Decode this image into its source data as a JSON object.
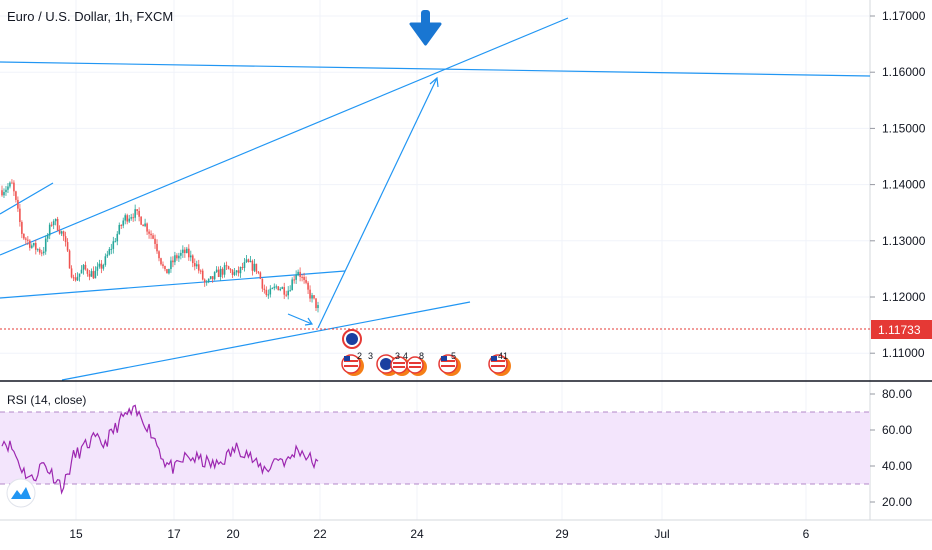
{
  "header": {
    "symbol_title": "Euro / U.S. Dollar, 1h, FXCM"
  },
  "price_scale": {
    "ticks": [
      "1.17000",
      "1.16000",
      "1.15000",
      "1.14000",
      "1.13000",
      "1.12000",
      "1.11000"
    ],
    "current_price_label": "1.11733"
  },
  "rsi_panel": {
    "title": "RSI (14, close)",
    "ticks": [
      "80.00",
      "60.00",
      "40.00",
      "20.00"
    ]
  },
  "time_axis": {
    "labels": [
      "15",
      "17",
      "20",
      "22",
      "24",
      "29",
      "Jul",
      "6"
    ]
  },
  "events": {
    "labels": [
      "2",
      "3",
      "3",
      "4",
      "8",
      "5",
      "41"
    ]
  },
  "colors": {
    "candle_up": "#26a69a",
    "candle_down": "#ef5350",
    "drawing_lines": "#2196f3",
    "current_price": "#e53935",
    "rsi_line": "#9c27b0",
    "rsi_band": "#f3e5fc",
    "arrow_marker": "#1976d2"
  },
  "chart_data": [
    {
      "type": "candlestick",
      "title": "Euro / U.S. Dollar, 1h, FXCM",
      "x_labels": [
        "15",
        "17",
        "20",
        "22",
        "24",
        "29",
        "Jul",
        "6"
      ],
      "ylim": [
        1.108,
        1.172
      ],
      "y_ticks": [
        1.11,
        1.12,
        1.13,
        1.14,
        1.15,
        1.16,
        1.17
      ],
      "current_price": 1.11733,
      "approx_close_path": [
        1.139,
        1.14,
        1.131,
        1.129,
        1.128,
        1.134,
        1.131,
        1.123,
        1.125,
        1.124,
        1.126,
        1.13,
        1.134,
        1.135,
        1.133,
        1.13,
        1.124,
        1.127,
        1.128,
        1.126,
        1.122,
        1.124,
        1.125,
        1.124,
        1.126,
        1.125,
        1.12,
        1.122,
        1.121,
        1.125,
        1.121,
        1.118
      ],
      "grid": true
    },
    {
      "type": "line",
      "title": "RSI (14, close)",
      "ylim": [
        10,
        90
      ],
      "y_ticks": [
        20,
        40,
        60,
        80
      ],
      "bands": [
        30,
        70
      ],
      "values": [
        55,
        50,
        38,
        32,
        42,
        35,
        28,
        45,
        50,
        55,
        52,
        60,
        68,
        70,
        65,
        55,
        42,
        38,
        45,
        44,
        42,
        40,
        45,
        50,
        48,
        40,
        38,
        45,
        42,
        50,
        45,
        40
      ]
    }
  ]
}
